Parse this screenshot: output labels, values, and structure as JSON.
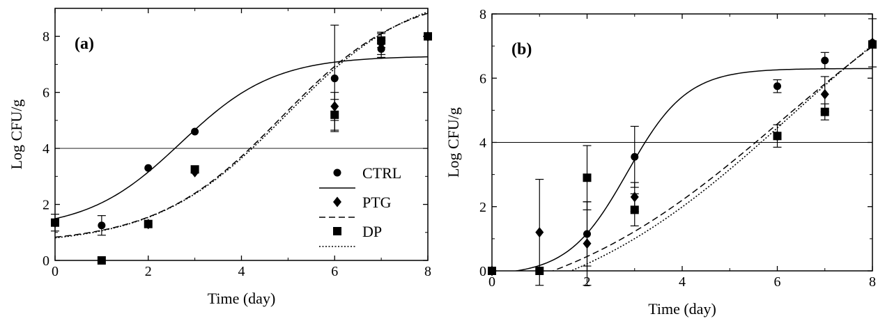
{
  "chart_data": [
    {
      "type": "scatter",
      "panel_label": "(a)",
      "xlabel": "Time (day)",
      "ylabel": "Log CFU/g",
      "xlim": [
        0,
        8
      ],
      "ylim": [
        0,
        9
      ],
      "xticks": [
        0,
        2,
        4,
        6,
        8
      ],
      "yticks": [
        0,
        2,
        4,
        6,
        8
      ],
      "reference_line_y": 4,
      "legend": {
        "position": "center-right",
        "entries": [
          "CTRL",
          "PTG",
          "DP"
        ]
      },
      "series": [
        {
          "name": "CTRL",
          "marker": "circle",
          "line_style": "solid",
          "points": [
            {
              "x": 0,
              "y": 1.35,
              "err": 0.1
            },
            {
              "x": 1,
              "y": 1.25,
              "err": 0.35
            },
            {
              "x": 2,
              "y": 3.3,
              "err": 0
            },
            {
              "x": 3,
              "y": 4.6,
              "err": 0
            },
            {
              "x": 6,
              "y": 6.5,
              "err": 1.9
            },
            {
              "x": 7,
              "y": 7.55,
              "err": 0.3
            },
            {
              "x": 8,
              "y": 8.0,
              "err": 0.05
            }
          ],
          "fit": {
            "model": "logistic",
            "lower": 1.1,
            "upper": 7.3,
            "mid": 2.7,
            "rate": 1.0
          }
        },
        {
          "name": "PTG",
          "marker": "diamond",
          "line_style": "dashed",
          "points": [
            {
              "x": 0,
              "y": 1.35,
              "err": 0
            },
            {
              "x": 2,
              "y": 1.3,
              "err": 0
            },
            {
              "x": 3,
              "y": 3.15,
              "err": 0
            },
            {
              "x": 6,
              "y": 5.5,
              "err": 0.5
            },
            {
              "x": 7,
              "y": 7.75,
              "err": 0.4
            },
            {
              "x": 8,
              "y": 8.0,
              "err": 0
            }
          ],
          "fit": {
            "model": "logistic",
            "lower": 0.6,
            "upper": 9.6,
            "mid": 4.85,
            "rate": 0.75
          }
        },
        {
          "name": "DP",
          "marker": "square",
          "line_style": "dotted",
          "points": [
            {
              "x": 0,
              "y": 1.35,
              "err": 0.3
            },
            {
              "x": 1,
              "y": 0.0,
              "err": 0
            },
            {
              "x": 2,
              "y": 1.3,
              "err": 0
            },
            {
              "x": 3,
              "y": 3.25,
              "err": 0
            },
            {
              "x": 6,
              "y": 5.2,
              "err": 0.55
            },
            {
              "x": 7,
              "y": 7.85,
              "err": 0.25
            },
            {
              "x": 8,
              "y": 8.0,
              "err": 0
            }
          ],
          "fit": {
            "model": "logistic",
            "lower": 0.55,
            "upper": 9.8,
            "mid": 4.95,
            "rate": 0.72
          }
        }
      ]
    },
    {
      "type": "scatter",
      "panel_label": "(b)",
      "xlabel": "Time (day)",
      "ylabel": "Log CFU/g",
      "xlim": [
        0,
        8
      ],
      "ylim": [
        0,
        8
      ],
      "xticks": [
        0,
        2,
        4,
        6,
        8
      ],
      "yticks": [
        0,
        2,
        4,
        6,
        8
      ],
      "reference_line_y": 4,
      "series": [
        {
          "name": "CTRL",
          "marker": "circle",
          "line_style": "solid",
          "points": [
            {
              "x": 0,
              "y": 0.0,
              "err": 0
            },
            {
              "x": 1,
              "y": 0.0,
              "err": 0
            },
            {
              "x": 2,
              "y": 1.15,
              "err": 1.0
            },
            {
              "x": 3,
              "y": 3.55,
              "err": 0.95
            },
            {
              "x": 6,
              "y": 5.75,
              "err": 0.2
            },
            {
              "x": 7,
              "y": 6.55,
              "err": 0.25
            },
            {
              "x": 8,
              "y": 7.1,
              "err": 0.75
            }
          ],
          "fit": {
            "model": "logistic",
            "lower": -0.15,
            "upper": 6.3,
            "mid": 2.85,
            "rate": 1.6
          }
        },
        {
          "name": "PTG",
          "marker": "diamond",
          "line_style": "dashed",
          "points": [
            {
              "x": 0,
              "y": 0.0,
              "err": 0
            },
            {
              "x": 1,
              "y": 1.2,
              "err": 1.65
            },
            {
              "x": 2,
              "y": 0.85,
              "err": 1.3
            },
            {
              "x": 3,
              "y": 2.3,
              "err": 0.45
            },
            {
              "x": 6,
              "y": 4.2,
              "err": 0.35
            },
            {
              "x": 7,
              "y": 5.5,
              "err": 0.55
            },
            {
              "x": 8,
              "y": 7.1,
              "err": 0
            }
          ],
          "fit": {
            "model": "logistic",
            "lower": -1.6,
            "upper": 11.0,
            "mid": 6.1,
            "rate": 0.4
          }
        },
        {
          "name": "DP",
          "marker": "square",
          "line_style": "dotted",
          "points": [
            {
              "x": 0,
              "y": 0.0,
              "err": 0
            },
            {
              "x": 1,
              "y": 0.0,
              "err": 0
            },
            {
              "x": 2,
              "y": 2.9,
              "err": 1.0
            },
            {
              "x": 3,
              "y": 1.9,
              "err": 0.5
            },
            {
              "x": 6,
              "y": 4.2,
              "err": 0
            },
            {
              "x": 7,
              "y": 4.95,
              "err": 0.25
            },
            {
              "x": 8,
              "y": 7.05,
              "err": 0
            }
          ],
          "fit": {
            "model": "logistic",
            "lower": -1.8,
            "upper": 11.5,
            "mid": 6.3,
            "rate": 0.4
          }
        }
      ]
    }
  ]
}
